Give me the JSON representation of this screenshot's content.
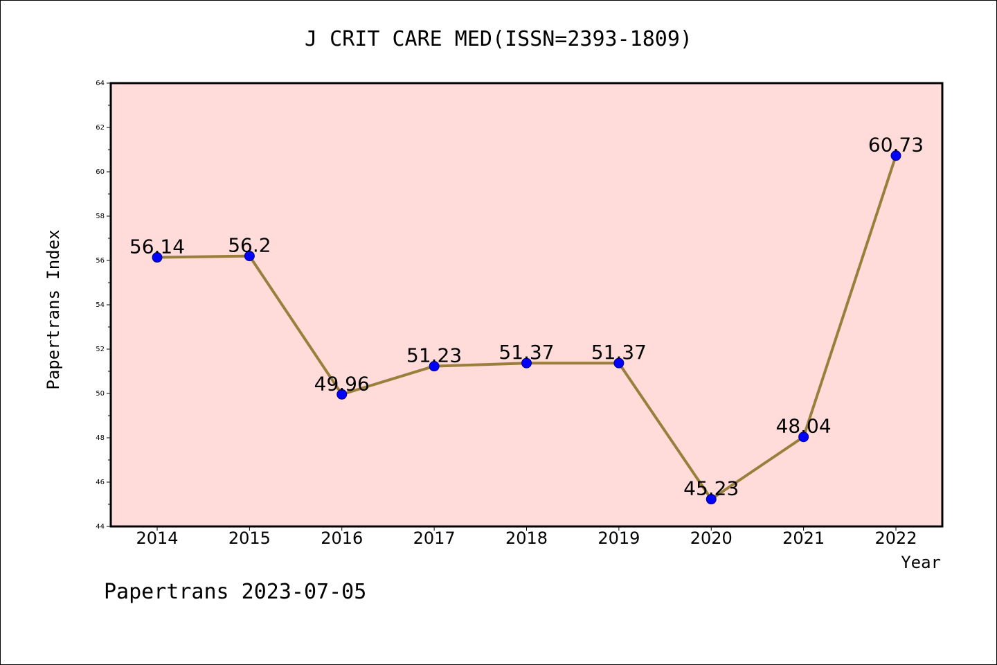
{
  "chart_data": {
    "type": "line",
    "title": "J CRIT CARE MED(ISSN=2393-1809)",
    "xlabel": "Year",
    "ylabel": "Papertrans Index",
    "footer": "Papertrans 2023-07-05",
    "categories": [
      "2014",
      "2015",
      "2016",
      "2017",
      "2018",
      "2019",
      "2020",
      "2021",
      "2022"
    ],
    "series": [
      {
        "values": [
          56.14,
          56.2,
          49.96,
          51.23,
          51.37,
          51.37,
          45.23,
          48.04,
          60.73
        ],
        "labels": [
          "56.14",
          "56.2",
          "49.96",
          "51.23",
          "51.37",
          "51.37",
          "45.23",
          "48.04",
          "60.73"
        ]
      }
    ],
    "ylim": [
      44,
      64
    ],
    "yticks": [
      "44",
      "46",
      "48",
      "50",
      "52",
      "54",
      "56",
      "58",
      "60",
      "62",
      "64"
    ],
    "grid": false,
    "colors": {
      "plot_background": "#ffdcd9",
      "line": "#9a7f3c",
      "marker": "#0000ff",
      "axis": "#000000"
    }
  }
}
